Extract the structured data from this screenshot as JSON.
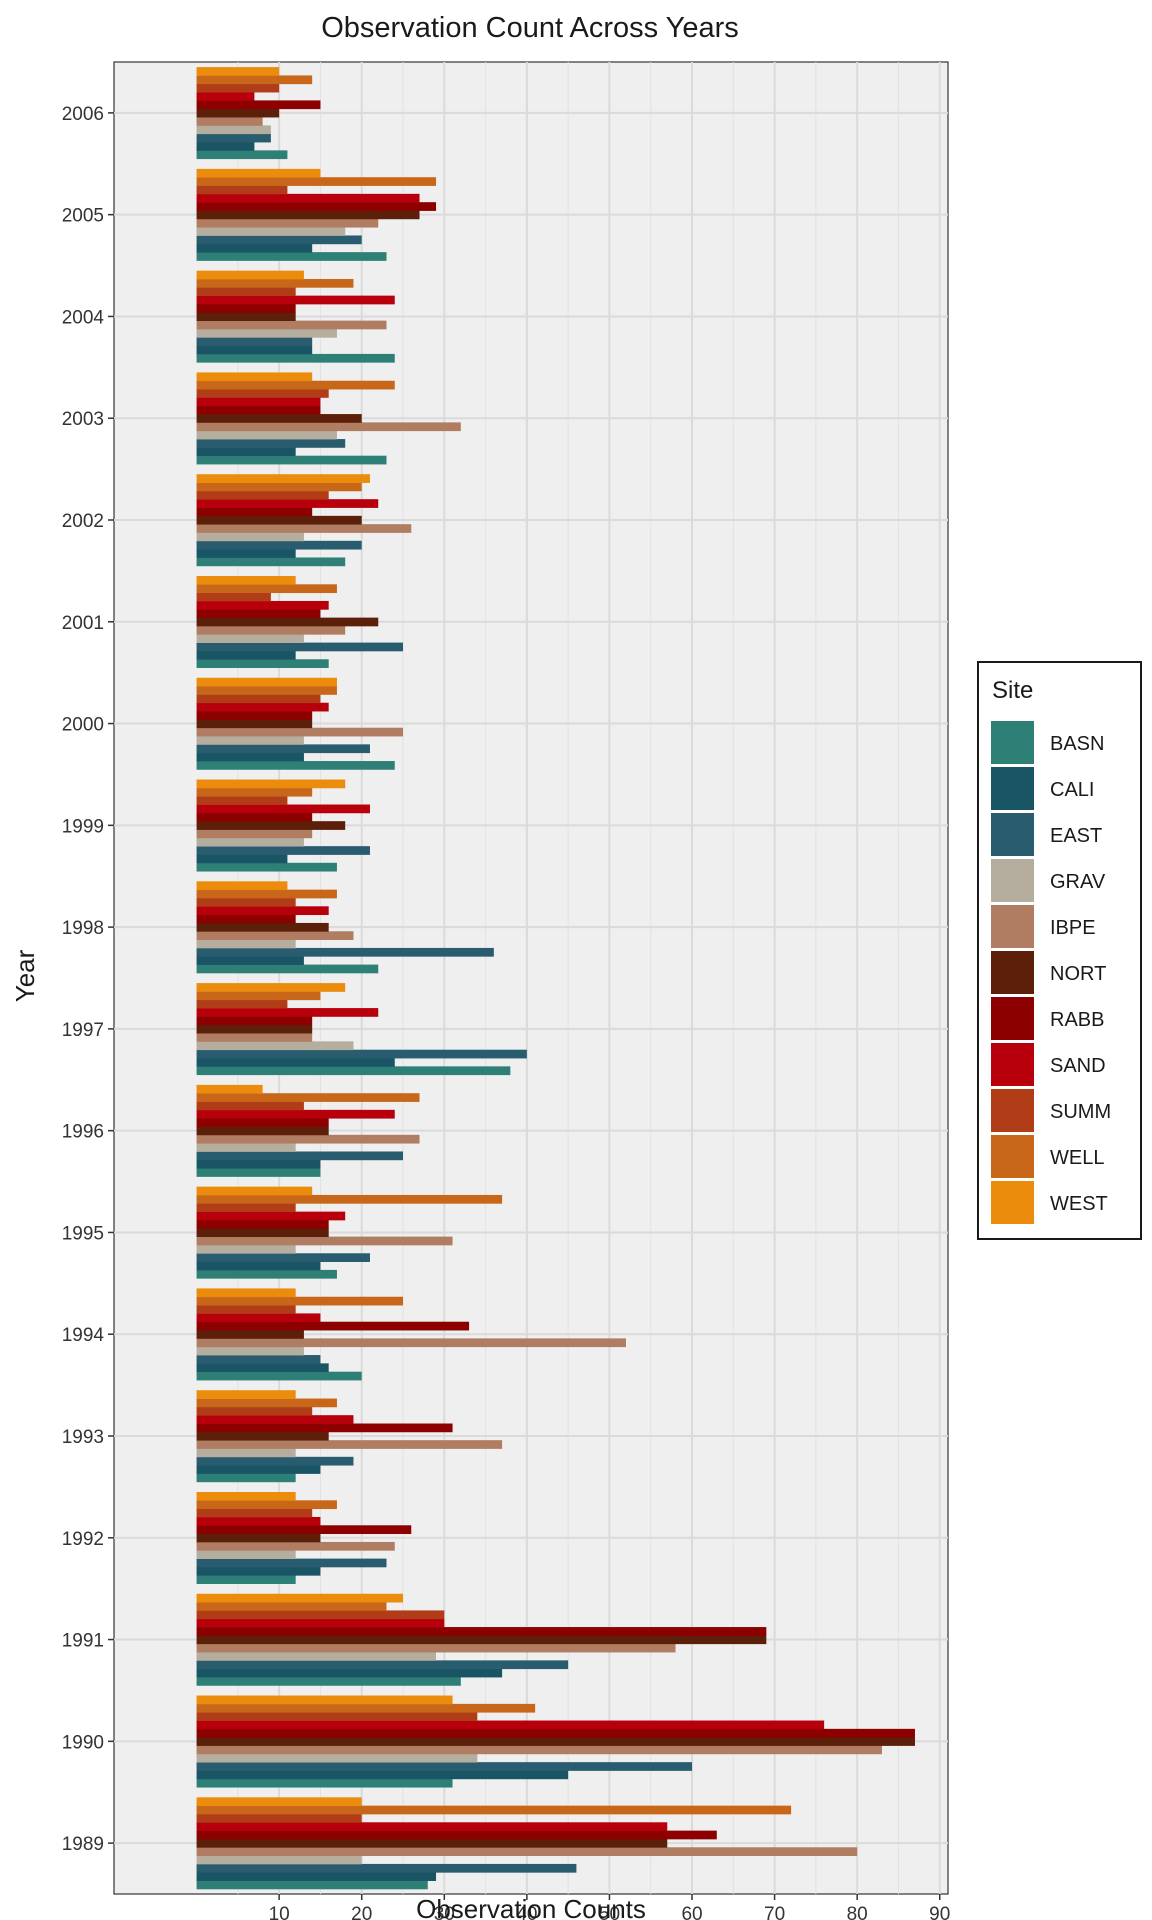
{
  "chart_data": {
    "type": "bar",
    "orientation": "horizontal",
    "title": "Observation Count Across Years",
    "xlabel": "Observation Counts",
    "ylabel": "Year",
    "xlim": [
      -10,
      91
    ],
    "x_ticks": [
      10,
      20,
      30,
      40,
      50,
      60,
      70,
      80,
      90
    ],
    "grid": true,
    "legend_position": "right",
    "legend_title": "Site",
    "categories": [
      "1989",
      "1990",
      "1991",
      "1992",
      "1993",
      "1994",
      "1995",
      "1996",
      "1997",
      "1998",
      "1999",
      "2000",
      "2001",
      "2002",
      "2003",
      "2004",
      "2005",
      "2006"
    ],
    "series": [
      {
        "name": "BASN",
        "color": "#2e8077",
        "values": [
          28,
          31,
          32,
          12,
          12,
          20,
          17,
          15,
          38,
          22,
          17,
          24,
          16,
          18,
          23,
          24,
          23,
          11
        ]
      },
      {
        "name": "CALI",
        "color": "#1a5566",
        "values": [
          29,
          45,
          37,
          15,
          15,
          16,
          15,
          15,
          24,
          13,
          11,
          13,
          12,
          12,
          12,
          14,
          14,
          7
        ]
      },
      {
        "name": "EAST",
        "color": "#2a5c70",
        "values": [
          46,
          60,
          45,
          23,
          19,
          15,
          21,
          25,
          40,
          36,
          21,
          21,
          25,
          20,
          18,
          14,
          20,
          9
        ]
      },
      {
        "name": "GRAV",
        "color": "#b5ad9e",
        "values": [
          20,
          34,
          29,
          12,
          12,
          13,
          12,
          12,
          19,
          12,
          13,
          13,
          13,
          13,
          17,
          17,
          18,
          9
        ]
      },
      {
        "name": "IBPE",
        "color": "#b07d62",
        "values": [
          80,
          83,
          58,
          24,
          37,
          52,
          31,
          27,
          14,
          19,
          14,
          25,
          18,
          26,
          32,
          23,
          22,
          8
        ]
      },
      {
        "name": "NORT",
        "color": "#5c1f0a",
        "values": [
          57,
          87,
          69,
          15,
          16,
          13,
          16,
          16,
          14,
          16,
          18,
          14,
          22,
          20,
          20,
          12,
          27,
          10
        ]
      },
      {
        "name": "RABB",
        "color": "#8c0000",
        "values": [
          63,
          87,
          69,
          26,
          31,
          33,
          16,
          16,
          14,
          12,
          14,
          14,
          15,
          14,
          15,
          12,
          29,
          15
        ]
      },
      {
        "name": "SAND",
        "color": "#b8000d",
        "values": [
          57,
          76,
          30,
          15,
          19,
          15,
          18,
          24,
          22,
          16,
          21,
          16,
          16,
          22,
          15,
          24,
          27,
          7
        ]
      },
      {
        "name": "SUMM",
        "color": "#b03d18",
        "values": [
          20,
          34,
          30,
          14,
          14,
          12,
          12,
          13,
          11,
          12,
          11,
          15,
          9,
          16,
          16,
          12,
          11,
          10
        ]
      },
      {
        "name": "WELL",
        "color": "#c8671a",
        "values": [
          72,
          41,
          23,
          17,
          17,
          25,
          37,
          27,
          15,
          17,
          14,
          17,
          17,
          20,
          24,
          19,
          29,
          14
        ]
      },
      {
        "name": "WEST",
        "color": "#ec8c0c",
        "values": [
          20,
          31,
          25,
          12,
          12,
          12,
          14,
          8,
          18,
          11,
          18,
          17,
          12,
          21,
          14,
          13,
          15,
          10
        ]
      }
    ]
  }
}
